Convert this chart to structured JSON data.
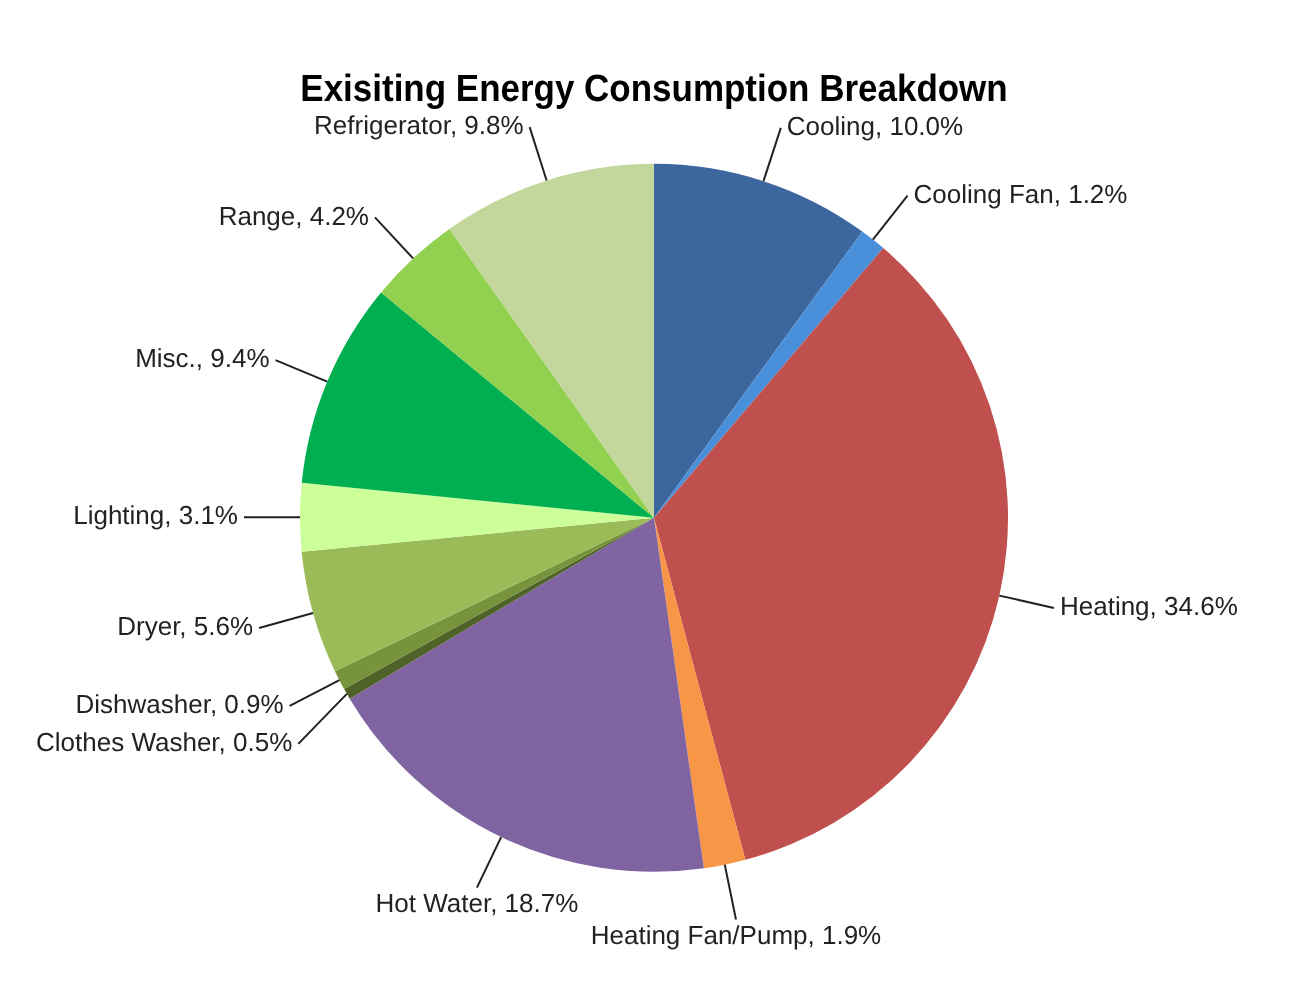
{
  "chart_data": {
    "type": "pie",
    "title": "Exisiting Energy Consumption Breakdown",
    "categories": [
      "Cooling",
      "Cooling Fan",
      "Heating",
      "Heating Fan/Pump",
      "Hot Water",
      "Clothes Washer",
      "Dishwasher",
      "Dryer",
      "Lighting",
      "Misc.",
      "Range",
      "Refrigerator"
    ],
    "values": [
      10.0,
      1.2,
      34.6,
      1.9,
      18.7,
      0.5,
      0.9,
      5.6,
      3.1,
      9.4,
      4.2,
      9.8
    ],
    "value_labels": [
      "10.0%",
      "1.2%",
      "34.6%",
      "1.9%",
      "18.7%",
      "0.5%",
      "0.9%",
      "5.6%",
      "3.1%",
      "9.4%",
      "4.2%",
      "9.8%"
    ],
    "colors": [
      "#3b679e",
      "#4a8fd9",
      "#c0504d",
      "#f79646",
      "#8064a2",
      "#4f6228",
      "#77933c",
      "#9bbb59",
      "#ccff99",
      "#00b050",
      "#92d050",
      "#c3d69b"
    ],
    "legend": false
  }
}
